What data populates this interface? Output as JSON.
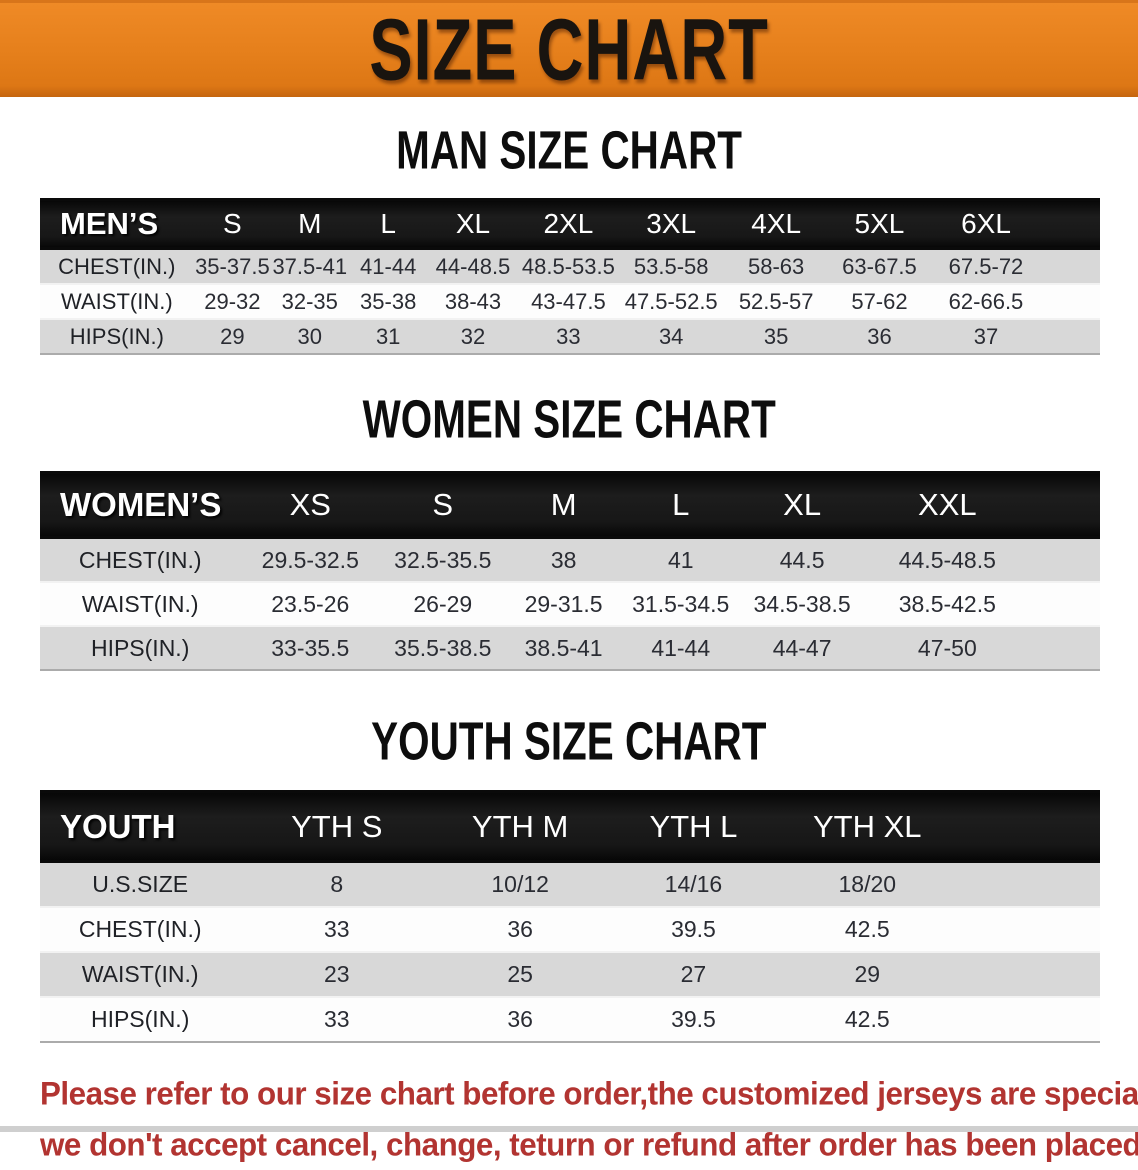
{
  "banner": {
    "title": "SIZE CHART",
    "bg_color": "#E57F1B",
    "text_color": "#19140F"
  },
  "sections": [
    {
      "heading": "MAN SIZE CHART",
      "corner_label": "MEN’S",
      "columns": [
        "S",
        "M",
        "L",
        "XL",
        "2XL",
        "3XL",
        "4XL",
        "5XL",
        "6XL"
      ],
      "rows": [
        {
          "label": "CHEST(IN.)",
          "values": [
            "35-37.5",
            "37.5-41",
            "41-44",
            "44-48.5",
            "48.5-53.5",
            "53.5-58",
            "58-63",
            "63-67.5",
            "67.5-72"
          ]
        },
        {
          "label": "WAIST(IN.)",
          "values": [
            "29-32",
            "32-35",
            "35-38",
            "38-43",
            "43-47.5",
            "47.5-52.5",
            "52.5-57",
            "57-62",
            "62-66.5"
          ]
        },
        {
          "label": "HIPS(IN.)",
          "values": [
            "29",
            "30",
            "31",
            "32",
            "33",
            "34",
            "35",
            "36",
            "37"
          ]
        }
      ]
    },
    {
      "heading": "WOMEN SIZE CHART",
      "corner_label": "WOMEN’S",
      "columns": [
        "XS",
        "S",
        "M",
        "L",
        "XL",
        "XXL"
      ],
      "rows": [
        {
          "label": "CHEST(IN.)",
          "values": [
            "29.5-32.5",
            "32.5-35.5",
            "38",
            "41",
            "44.5",
            "44.5-48.5"
          ]
        },
        {
          "label": "WAIST(IN.)",
          "values": [
            "23.5-26",
            "26-29",
            "29-31.5",
            "31.5-34.5",
            "34.5-38.5",
            "38.5-42.5"
          ]
        },
        {
          "label": "HIPS(IN.)",
          "values": [
            "33-35.5",
            "35.5-38.5",
            "38.5-41",
            "41-44",
            "44-47",
            "47-50"
          ]
        }
      ]
    },
    {
      "heading": "YOUTH SIZE CHART",
      "corner_label": "YOUTH",
      "columns": [
        "YTH S",
        "YTH M",
        "YTH L",
        "YTH XL"
      ],
      "rows": [
        {
          "label": "U.S.SIZE",
          "values": [
            "8",
            "10/12",
            "14/16",
            "18/20"
          ]
        },
        {
          "label": "CHEST(IN.)",
          "values": [
            "33",
            "36",
            "39.5",
            "42.5"
          ]
        },
        {
          "label": "WAIST(IN.)",
          "values": [
            "23",
            "25",
            "27",
            "29"
          ]
        },
        {
          "label": "HIPS(IN.)",
          "values": [
            "33",
            "36",
            "39.5",
            "42.5"
          ]
        }
      ]
    }
  ],
  "footer": {
    "line1": "Please refer to our size chart before order,the customized jerseys are special products,",
    "line2": "we don't accept cancel, change, teturn or refund after order has been placed!",
    "text_color": "#B23431"
  }
}
